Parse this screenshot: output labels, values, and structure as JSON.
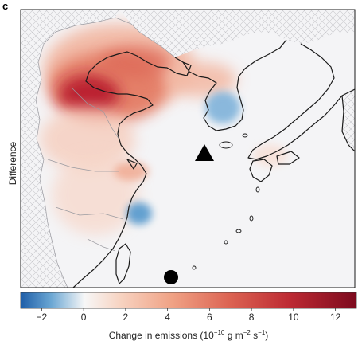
{
  "panel": {
    "letter": "c",
    "row_label": "Difference"
  },
  "map": {
    "markers": [
      {
        "shape": "triangle",
        "color": "#000000"
      },
      {
        "shape": "circle",
        "color": "#000000"
      }
    ],
    "land_color": "#f4f4f6",
    "ocean_color": "#f4f4f6",
    "hatch": "crosshatch for regions outside inversion domain"
  },
  "colorbar": {
    "label_prefix": "Change in emissions (10",
    "label_exponent": "−10",
    "label_middle": " g m",
    "label_exponent2": "−2",
    "label_middle2": " s",
    "label_exponent3": "−1",
    "label_suffix": ")",
    "min": -3,
    "max": 13,
    "ticks": [
      -2,
      0,
      2,
      4,
      6,
      8,
      10,
      12
    ],
    "tick_labels": [
      "−2",
      "0",
      "2",
      "4",
      "6",
      "8",
      "10",
      "12"
    ],
    "colors": {
      "low": "#2166ac",
      "zero": "#f7f7f7",
      "mid": "#f4a582",
      "high": "#b2182b",
      "max": "#67001f"
    }
  }
}
